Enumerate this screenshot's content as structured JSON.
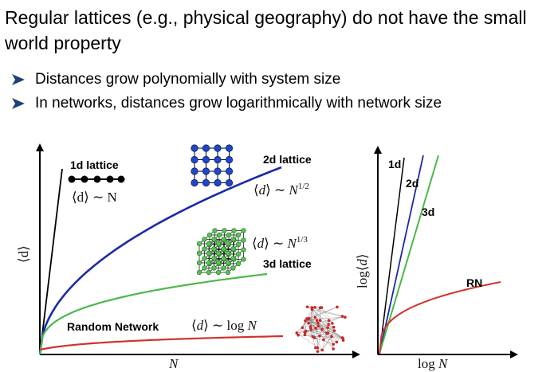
{
  "slide": {
    "title": "Regular lattices (e.g., physical geography) do not have the small world property",
    "bullets": [
      "Distances grow polynomially with system size",
      "In networks, distances grow logarithmically with network size"
    ]
  },
  "left_plot": {
    "x_axis_label": "N",
    "y_axis_label": "⟨d⟩",
    "curves": [
      {
        "label": "1d lattice",
        "formula": "⟨d⟩ ∼ N",
        "color": "#000000"
      },
      {
        "label": "2d lattice",
        "formula": "⟨d⟩ ∼ N^{1/2}",
        "color": "#1a2aa8"
      },
      {
        "label": "3d lattice",
        "formula": "⟨d⟩ ∼ N^{1/3}",
        "color": "#4cb848"
      },
      {
        "label": "Random Network",
        "formula": "⟨d⟩ ∼ log N",
        "color": "#d0332a"
      }
    ]
  },
  "right_plot": {
    "x_axis_label": "log N",
    "y_axis_label": "log⟨d⟩",
    "curve_labels": [
      "1d",
      "2d",
      "3d",
      "RN"
    ]
  },
  "icons": [
    "chain-lattice-icon",
    "grid-lattice-icon",
    "cube-lattice-icon",
    "random-network-icon"
  ],
  "colors": {
    "arrow": "#1f3f7a",
    "blue": "#1a2aa8",
    "green": "#4cb848",
    "red": "#d0332a"
  }
}
